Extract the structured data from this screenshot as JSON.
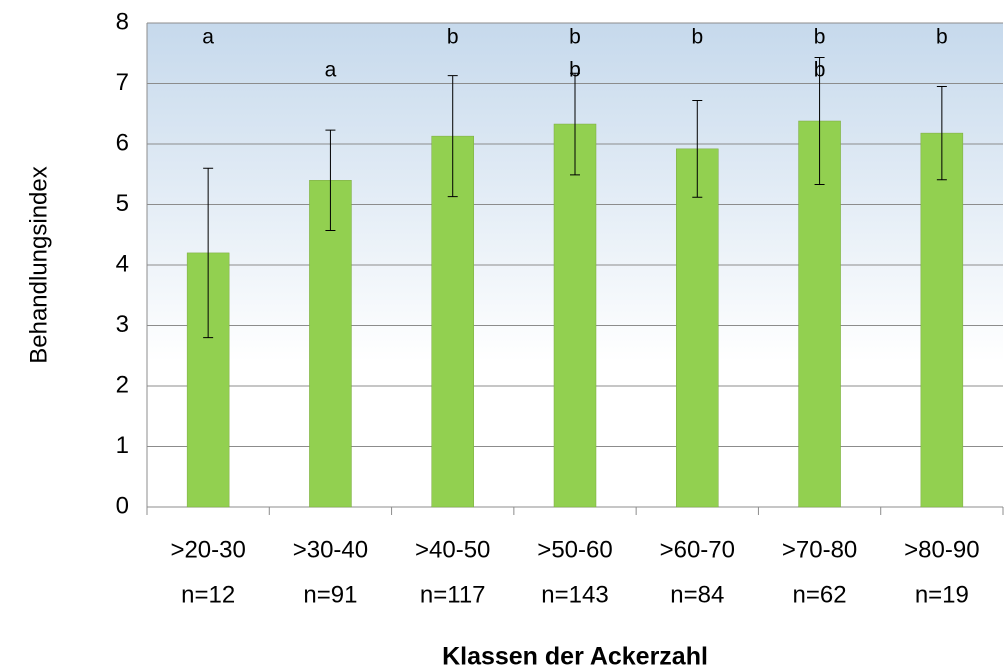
{
  "chart_data": {
    "type": "bar",
    "x_label": "Klassen der Ackerzahl",
    "y_label": "Behandlungsindex",
    "categories": [
      ">20-30",
      ">30-40",
      ">40-50",
      ">50-60",
      ">60-70",
      ">70-80",
      ">80-90"
    ],
    "n_labels": [
      "n=12",
      "n=91",
      "n=117",
      "n=143",
      "n=84",
      "n=62",
      "n=19"
    ],
    "values": [
      4.2,
      5.4,
      6.13,
      6.33,
      5.92,
      6.38,
      6.18
    ],
    "errors": [
      1.4,
      0.83,
      1.0,
      0.84,
      0.8,
      1.05,
      0.77
    ],
    "letters_row1": [
      "a",
      null,
      "b",
      "b",
      "b",
      "b",
      "b"
    ],
    "letters_row2": [
      null,
      "a",
      null,
      "b",
      null,
      "b",
      null
    ],
    "color": "#92d050",
    "ylim": [
      0,
      8
    ],
    "yticks": [
      0,
      1,
      2,
      3,
      4,
      5,
      6,
      7,
      8
    ],
    "grid": true
  }
}
